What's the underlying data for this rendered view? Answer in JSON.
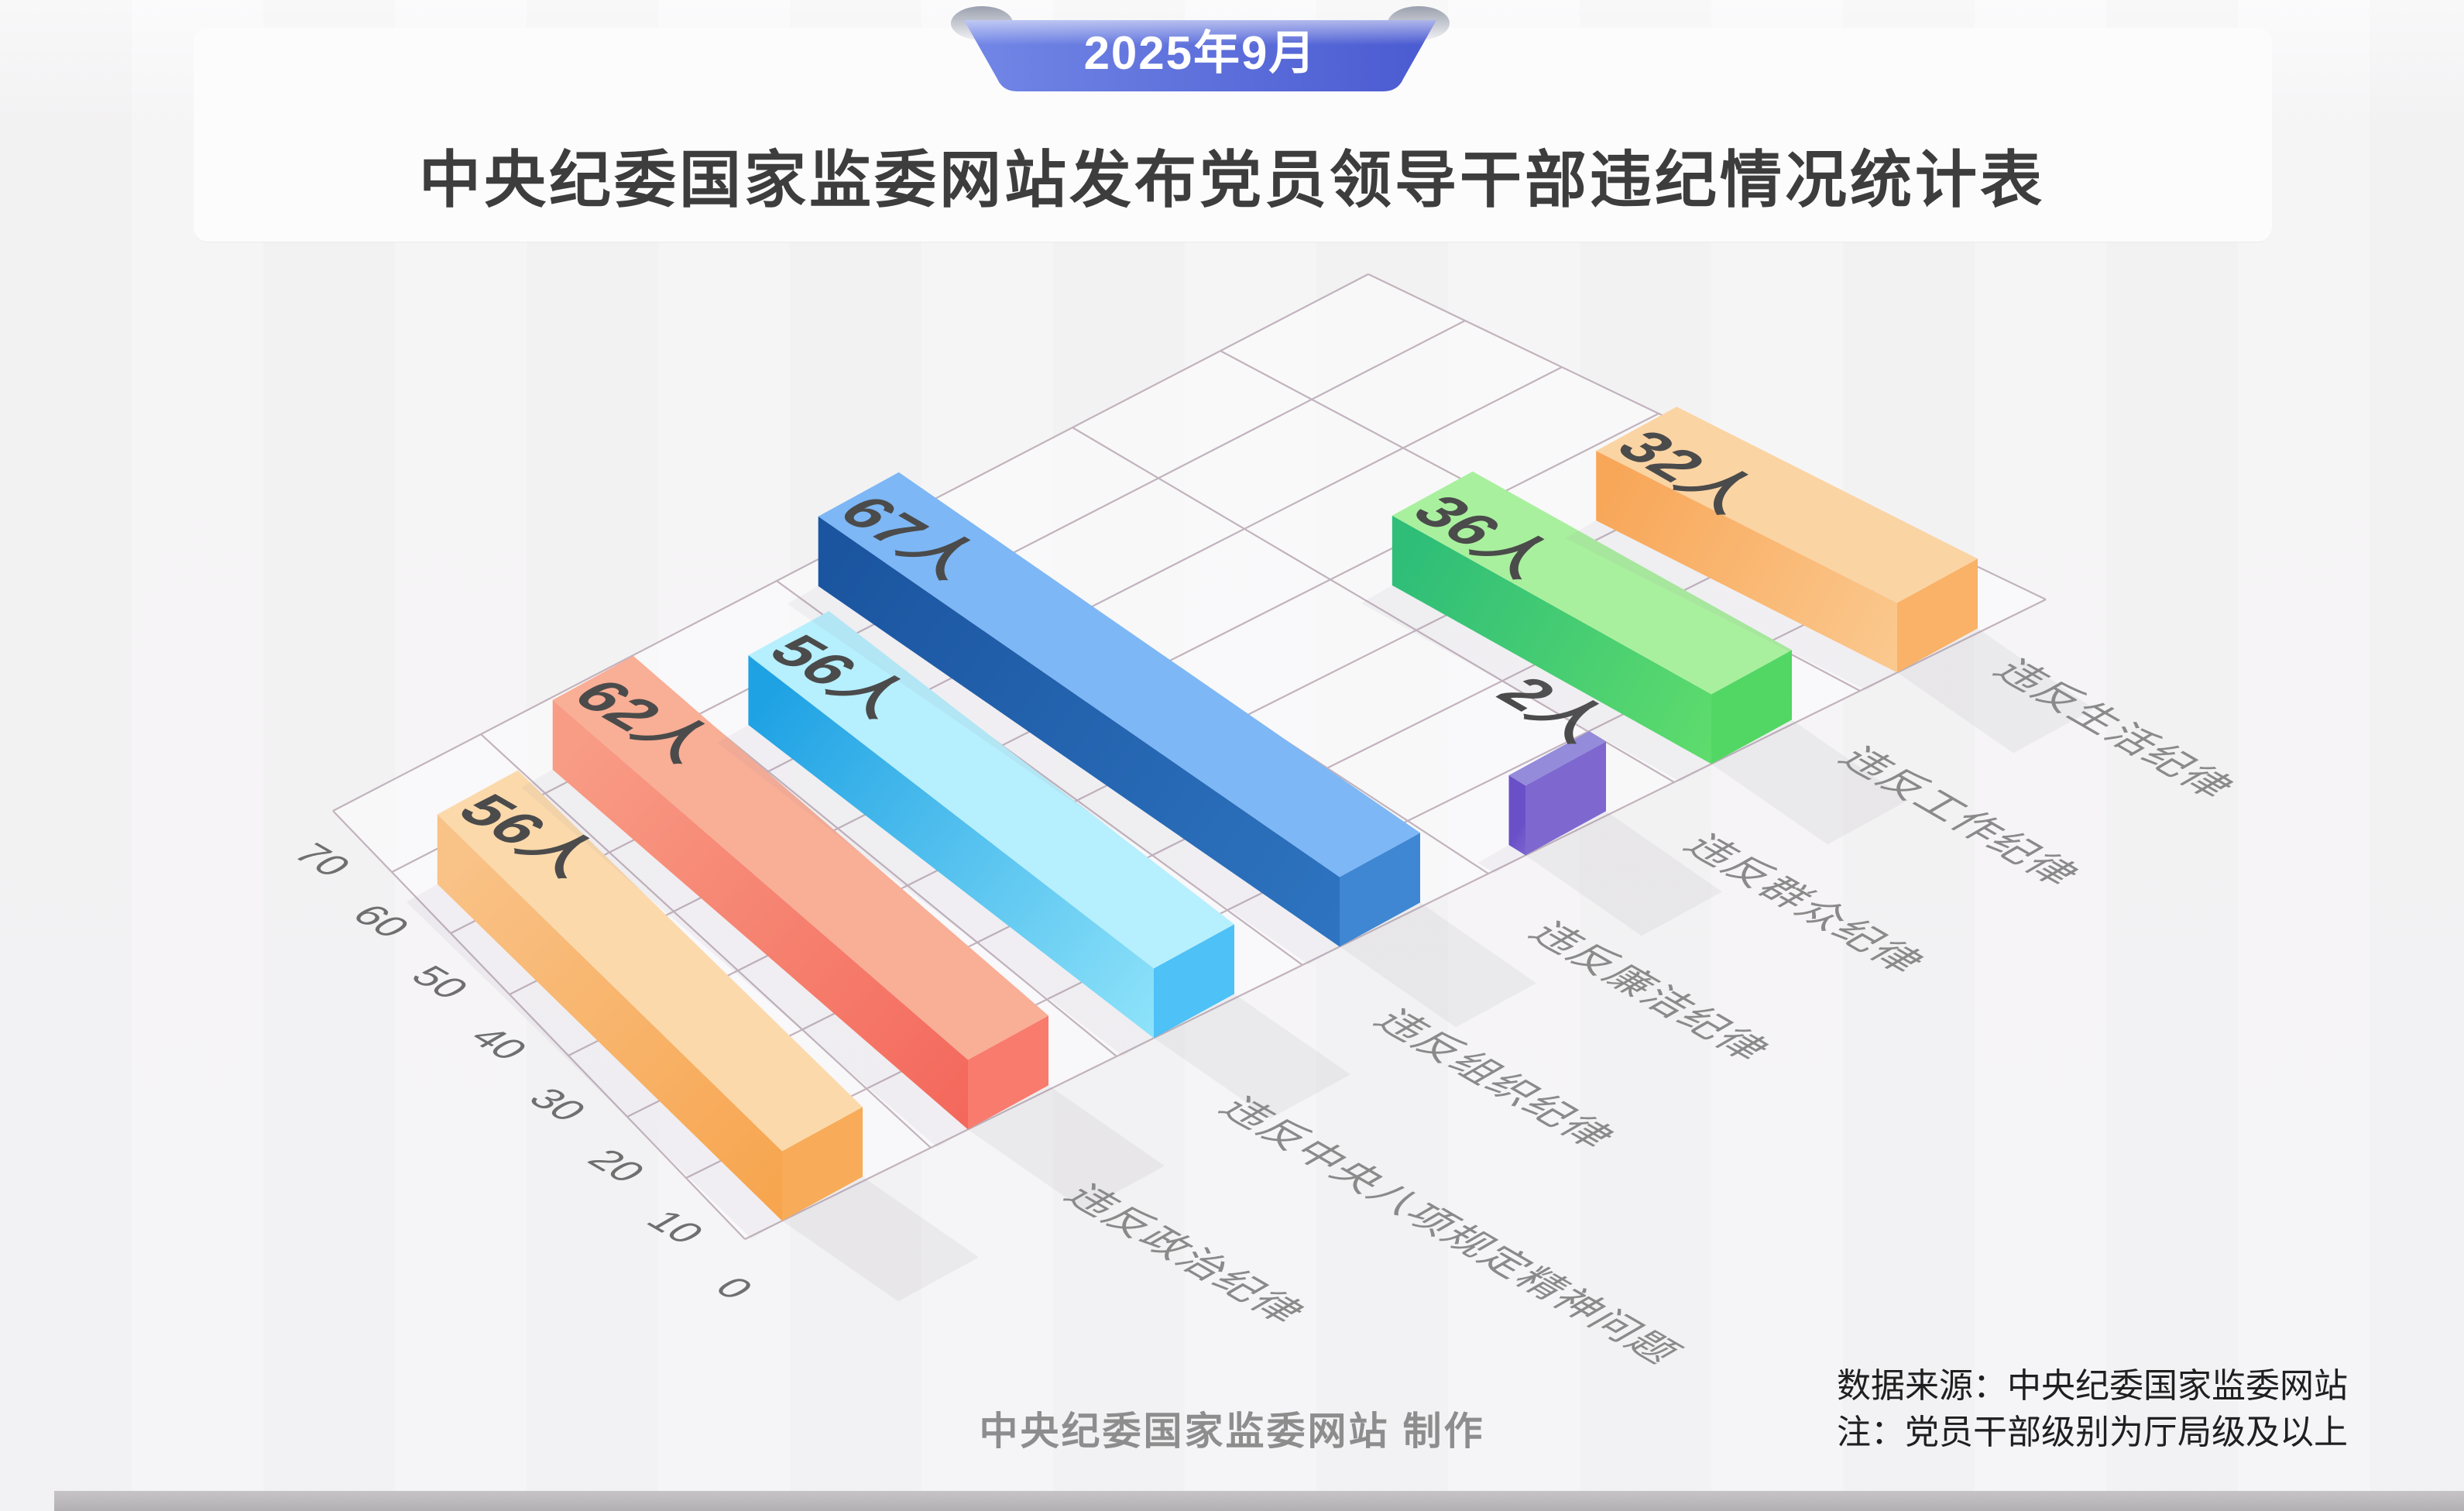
{
  "banner": {
    "label": "2025年9月"
  },
  "title": "中央纪委国家监委网站发布党员领导干部违纪情况统计表",
  "footer": {
    "credit": "中央纪委国家监委网站 制作",
    "source": "数据来源：中央纪委国家监委网站",
    "note": "注：党员干部级别为厅局级及以上"
  },
  "chart_data": {
    "type": "bar",
    "projection": "isometric-3d",
    "title": "中央纪委国家监委网站发布党员领导干部违纪情况统计表",
    "subtitle": "2025年9月",
    "categories": [
      "违反政治纪律",
      "违反中央八项规定精神问题",
      "违反组织纪律",
      "违反廉洁纪律",
      "违反群众纪律",
      "违反工作纪律",
      "违反生活纪律"
    ],
    "values": [
      56,
      62,
      56,
      67,
      2,
      36,
      32
    ],
    "unit": "人",
    "value_labels": [
      "56人",
      "62人",
      "56人",
      "67人",
      "2人",
      "36人",
      "32人"
    ],
    "axis_ticks": [
      0,
      10,
      20,
      30,
      40,
      50,
      60,
      70
    ],
    "ylim": [
      0,
      70
    ],
    "grid": true,
    "legend": false,
    "grid_line_color": "#c2b3bd",
    "value_label_color": "#4b4b4b",
    "tick_label_color": "#6f6f6f",
    "category_label_color": "#8a8a8a",
    "bar_colors": [
      {
        "top": "#fbd9ab",
        "side_from": "#f9c287",
        "side_to": "#f7a44c",
        "cap": "#f8ab58"
      },
      {
        "top": "#f9ae96",
        "side_from": "#f89c85",
        "side_to": "#f4675b",
        "cap": "#f97b6d"
      },
      {
        "top": "#b6effd",
        "side_from": "#1fa2e4",
        "side_to": "#8fe3fa",
        "cap": "#4ec1f6"
      },
      {
        "top": "#7db7f5",
        "side_from": "#1b55a0",
        "side_to": "#2e74c0",
        "cap": "#3f87d2"
      },
      {
        "top": "#948bda",
        "side_from": "#6a50c8",
        "side_to": "#7c63cf",
        "cap": "#7e68d0"
      },
      {
        "top": "#a9f09e",
        "side_from": "#2fbe78",
        "side_to": "#5fdc6c",
        "cap": "#52d765"
      },
      {
        "top": "#fbd4a4",
        "side_from": "#f8a759",
        "side_to": "#fbc98f",
        "cap": "#f9b268"
      }
    ],
    "ribbon_colors": {
      "left": "#7287e6",
      "right": "#4a5ad1",
      "fold": "#b7bac4"
    }
  }
}
